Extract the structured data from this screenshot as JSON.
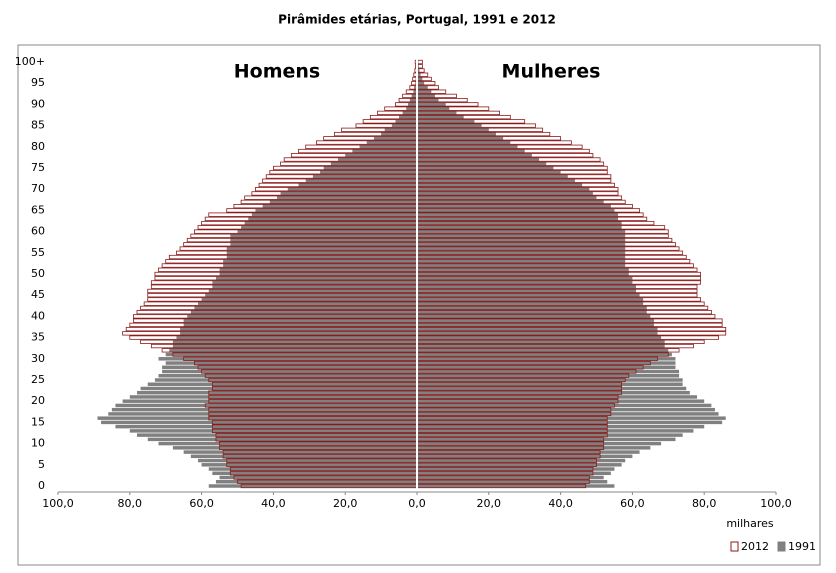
{
  "chart_data": {
    "type": "pyramid",
    "title": "Pirâmides etárias, Portugal, 1991 e 2012",
    "left_label": "Homens",
    "right_label": "Mulheres",
    "x_unit_label": "milhares",
    "categories": [
      "0",
      null,
      null,
      null,
      null,
      "5",
      null,
      null,
      null,
      null,
      "10",
      null,
      null,
      null,
      null,
      "15",
      null,
      null,
      null,
      null,
      "20",
      null,
      null,
      null,
      null,
      "25",
      null,
      null,
      null,
      null,
      "30",
      null,
      null,
      null,
      null,
      "35",
      null,
      null,
      null,
      null,
      "40",
      null,
      null,
      null,
      null,
      "45",
      null,
      null,
      null,
      null,
      "50",
      null,
      null,
      null,
      null,
      "55",
      null,
      null,
      null,
      null,
      "60",
      null,
      null,
      null,
      null,
      "65",
      null,
      null,
      null,
      null,
      "70",
      null,
      null,
      null,
      null,
      "75",
      null,
      null,
      null,
      null,
      "80",
      null,
      null,
      null,
      null,
      "85",
      null,
      null,
      null,
      null,
      "90",
      null,
      null,
      null,
      null,
      "95",
      null,
      null,
      null,
      null,
      "100+"
    ],
    "xlim": [
      -100,
      100
    ],
    "xticks": [
      {
        "value": -100,
        "label": "100,0"
      },
      {
        "value": -80,
        "label": "80,0"
      },
      {
        "value": -60,
        "label": "60,0"
      },
      {
        "value": -40,
        "label": "40,0"
      },
      {
        "value": -20,
        "label": "20,0"
      },
      {
        "value": 0,
        "label": "0,0"
      },
      {
        "value": 20,
        "label": "20,0"
      },
      {
        "value": 40,
        "label": "40,0"
      },
      {
        "value": 60,
        "label": "60,0"
      },
      {
        "value": 80,
        "label": "80,0"
      },
      {
        "value": 100,
        "label": "100,0"
      }
    ],
    "series": [
      {
        "name": "2012",
        "color": "#ffffff",
        "edgecolor": "#8b1a1a",
        "men": [
          -49,
          -50,
          -51,
          -52,
          -52,
          -53,
          -53,
          -54,
          -54,
          -55,
          -55,
          -56,
          -56,
          -57,
          -57,
          -57,
          -58,
          -58,
          -58,
          -59,
          -58,
          -58,
          -58,
          -57,
          -57,
          -58,
          -59,
          -60,
          -61,
          -62,
          -65,
          -68,
          -71,
          -74,
          -77,
          -80,
          -82,
          -81,
          -80,
          -79,
          -79,
          -78,
          -77,
          -76,
          -75,
          -75,
          -75,
          -74,
          -74,
          -73,
          -73,
          -72,
          -71,
          -70,
          -69,
          -67,
          -66,
          -65,
          -64,
          -63,
          -62,
          -61,
          -60,
          -59,
          -58,
          -53,
          -51,
          -49,
          -48,
          -46,
          -45,
          -44,
          -43,
          -42,
          -41,
          -40,
          -38,
          -37,
          -35,
          -33,
          -31,
          -28,
          -26,
          -23,
          -21,
          -17,
          -15,
          -13,
          -11,
          -9,
          -6,
          -5,
          -4,
          -3,
          -2,
          -1.5,
          -1.2,
          -0.9,
          -0.6,
          -0.4,
          -0.5
        ],
        "women": [
          47,
          48,
          48,
          49,
          49,
          50,
          50,
          51,
          51,
          52,
          52,
          52,
          53,
          53,
          53,
          53,
          53,
          54,
          54,
          55,
          56,
          56,
          57,
          57,
          57,
          58,
          59,
          61,
          63,
          65,
          67,
          70,
          73,
          77,
          80,
          84,
          86,
          86,
          85,
          85,
          83,
          82,
          81,
          80,
          79,
          78,
          78,
          78,
          79,
          79,
          79,
          78,
          77,
          76,
          75,
          74,
          73,
          72,
          71,
          70,
          70,
          69,
          66,
          64,
          63,
          62,
          60,
          58,
          57,
          56,
          56,
          55,
          54,
          54,
          53,
          53,
          52,
          51,
          49,
          48,
          46,
          43,
          40,
          37,
          35,
          33,
          30,
          26,
          23,
          20,
          17,
          14,
          11,
          8,
          6,
          5,
          4,
          3,
          2,
          1.5,
          1.5
        ]
      },
      {
        "name": "1991",
        "color": "#808080",
        "men": [
          -58,
          -56,
          -55,
          -57,
          -58,
          -60,
          -61,
          -63,
          -65,
          -68,
          -72,
          -75,
          -78,
          -80,
          -84,
          -88,
          -89,
          -86,
          -85,
          -84,
          -82,
          -80,
          -78,
          -77,
          -75,
          -73,
          -72,
          -71,
          -71,
          -70,
          -72,
          -70,
          -69,
          -68,
          -68,
          -67,
          -66,
          -66,
          -65,
          -65,
          -64,
          -63,
          -62,
          -61,
          -60,
          -59,
          -58,
          -57,
          -57,
          -56,
          -55,
          -55,
          -54,
          -54,
          -53,
          -53,
          -53,
          -52,
          -52,
          -52,
          -50,
          -49,
          -48,
          -47,
          -46,
          -45,
          -43,
          -41,
          -39,
          -38,
          -36,
          -33,
          -31,
          -29,
          -27,
          -26,
          -24,
          -22,
          -20,
          -18,
          -16,
          -14,
          -12,
          -10,
          -9,
          -7,
          -6,
          -5,
          -4,
          -3,
          -2.5,
          -2,
          -1.5,
          -1,
          -0.8,
          -0.5,
          -0.4,
          -0.3,
          -0.2,
          -0.1,
          -0.2
        ],
        "women": [
          55,
          53,
          52,
          54,
          55,
          57,
          58,
          60,
          62,
          65,
          68,
          72,
          74,
          77,
          80,
          85,
          86,
          84,
          83,
          82,
          80,
          78,
          76,
          75,
          74,
          74,
          73,
          73,
          72,
          72,
          72,
          71,
          70,
          69,
          69,
          68,
          67,
          67,
          66,
          66,
          65,
          64,
          64,
          63,
          63,
          62,
          61,
          61,
          60,
          60,
          59,
          59,
          58,
          58,
          58,
          58,
          58,
          58,
          58,
          58,
          58,
          57,
          57,
          56,
          56,
          55,
          54,
          52,
          50,
          49,
          48,
          46,
          44,
          42,
          40,
          38,
          36,
          34,
          32,
          30,
          28,
          26,
          24,
          22,
          20,
          18,
          16,
          13,
          11,
          9,
          8,
          6,
          5,
          4,
          3,
          2,
          1.5,
          1,
          0.7,
          0.5,
          0.4
        ]
      }
    ]
  }
}
